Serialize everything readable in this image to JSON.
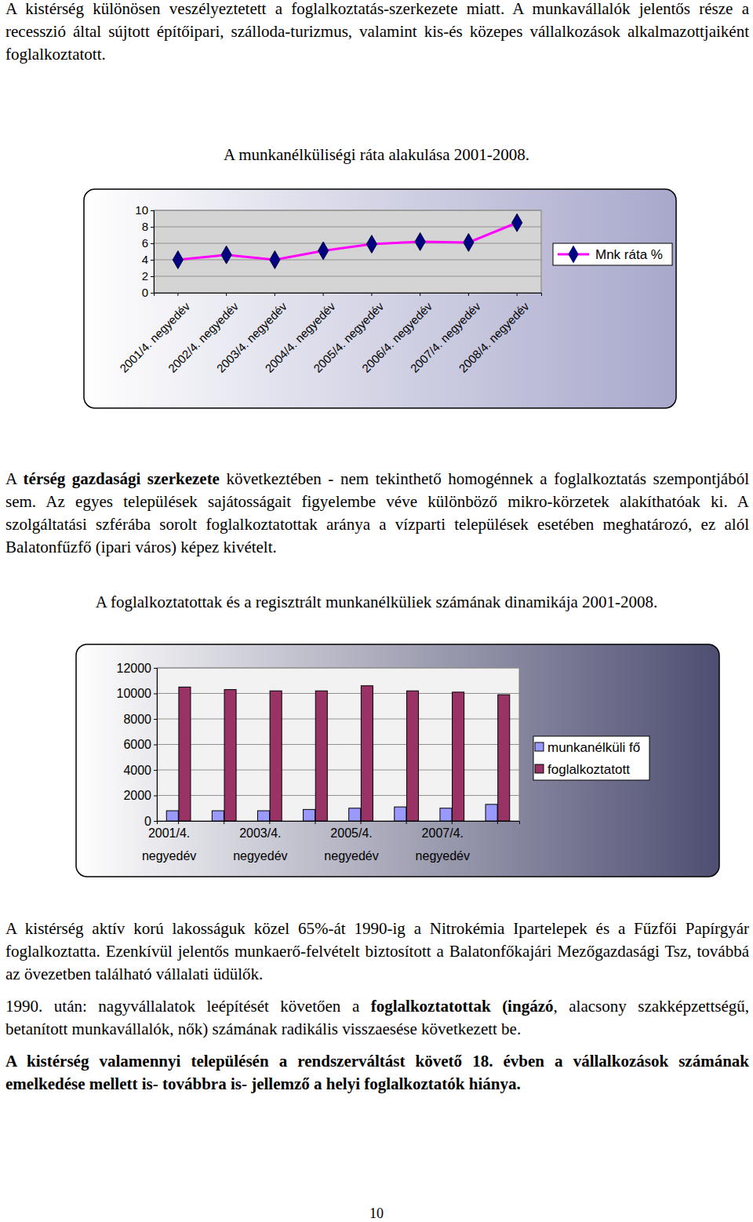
{
  "page": {
    "paragraphs": [
      [
        {
          "text": "A kistérség különösen veszélyeztetett a foglalkoztatás-szerkezete miatt. A munkavállalók jelentős része a recesszió által sújtott építőipari, szálloda-turizmus, valamint kis-és közepes vállalkozások alkalmazottjaiként foglalkoztatott."
        }
      ],
      [
        {
          "text": "A "
        },
        {
          "text": "térség gazdasági szerkezete",
          "bold": true
        },
        {
          "text": " következtében - nem tekinthető homogénnek a foglalkoztatás szempontjából sem. Az egyes települések sajátosságait figyelembe véve különböző mikro-körzetek alakíthatóak ki. A szolgáltatási szférába sorolt foglalkoztatottak aránya a vízparti települések esetében meghatározó, ez alól Balatonfűzfő (ipari város) képez kivételt."
        }
      ],
      [
        {
          "text": "A kistérség aktív korú lakosságuk közel 65%-át 1990-ig a Nitrokémia Ipartelepek és a Fűzfői Papírgyár foglalkoztatta. Ezenkívül jelentős munkaerő-felvételt biztosított a Balatonfőkajári Mezőgazdasági Tsz, továbbá az övezetben található vállalati üdülők."
        }
      ],
      [
        {
          "text": "1990. után: nagyvállalatok leépítését követően a "
        },
        {
          "text": "foglalkoztatottak (ingázó",
          "bold": true
        },
        {
          "text": ", alacsony szakképzettségű, betanított munkavállalók, nők) számának radikális visszaesése következett be."
        }
      ],
      [
        {
          "text": "A kistérség valamennyi településén a rendszerváltást követő 18. évben a vállalkozások számának emelkedése mellett is- továbbra is- jellemző a helyi foglalkoztatók hiánya.",
          "bold": true
        }
      ]
    ],
    "page_number": "10"
  },
  "chart_data": [
    {
      "type": "line",
      "title": "A munkanélküliségi ráta alakulása 2001-2008.",
      "categories": [
        "2001/4. negyedév",
        "2002/4. negyedév",
        "2003/4. negyedév",
        "2004/4. negyedév",
        "2005/4. negyedév",
        "2006/4. negyedév",
        "2007/4. negyedév",
        "2008/4. negyedév"
      ],
      "series": [
        {
          "name": "Mnk ráta %",
          "color": "#ff00ff",
          "marker": "diamond",
          "values": [
            4.0,
            4.6,
            4.0,
            5.1,
            5.9,
            6.2,
            6.1,
            8.5
          ]
        }
      ],
      "ylim": [
        0,
        10
      ],
      "yticks": [
        0,
        2,
        4,
        6,
        8,
        10
      ],
      "grid": true,
      "legend": "right"
    },
    {
      "type": "bar",
      "title": "A foglalkoztatottak és a regisztrált munkanélküliek számának dinamikája 2001-2008.",
      "categories": [
        "2001/4. negyedév",
        null,
        "2003/4. negyedév",
        null,
        "2005/4. negyedév",
        null,
        "2007/4. negyedév",
        null
      ],
      "series": [
        {
          "name": "munkanélküli fő",
          "color": "#9999ff",
          "values": [
            800,
            800,
            800,
            900,
            1000,
            1100,
            1000,
            1300
          ]
        },
        {
          "name": "foglalkoztatott",
          "color": "#993366",
          "values": [
            10500,
            10300,
            10200,
            10200,
            10600,
            10200,
            10100,
            9900
          ]
        }
      ],
      "ylim": [
        0,
        12000
      ],
      "yticks": [
        0,
        2000,
        4000,
        6000,
        8000,
        10000,
        12000
      ],
      "grid": true,
      "legend": "right"
    }
  ]
}
